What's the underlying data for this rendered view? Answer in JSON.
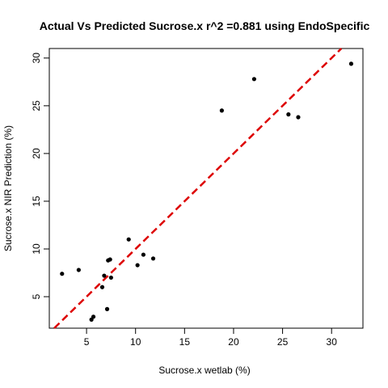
{
  "chart_data": {
    "type": "scatter",
    "title": "Actual Vs Predicted Sucrose.x r^2 =0.881 using EndoSpecific",
    "xlabel": "Sucrose.x wetlab (%)",
    "ylabel": "Sucrose.x NIR Prediction (%)",
    "xlim": [
      1.2,
      33.2
    ],
    "ylim": [
      1.7,
      31.0
    ],
    "xticks": [
      5,
      10,
      15,
      20,
      25,
      30
    ],
    "yticks": [
      5,
      10,
      15,
      20,
      25,
      30
    ],
    "x": [
      2.5,
      4.2,
      5.5,
      5.7,
      6.6,
      6.8,
      7.1,
      7.2,
      7.4,
      7.5,
      9.3,
      10.2,
      10.8,
      11.8,
      18.8,
      22.1,
      25.6,
      26.6,
      32.0
    ],
    "y": [
      7.4,
      7.8,
      2.6,
      2.9,
      6.0,
      7.2,
      3.7,
      8.8,
      8.9,
      7.0,
      11.0,
      8.3,
      9.4,
      9.0,
      24.5,
      27.8,
      24.1,
      23.8,
      29.4
    ],
    "fit_line": {
      "intercept": 0.0,
      "slope": 1.0,
      "color": "#dd0000",
      "style": "dashed"
    },
    "point_color": "#000000",
    "grid": false,
    "legend": false
  }
}
